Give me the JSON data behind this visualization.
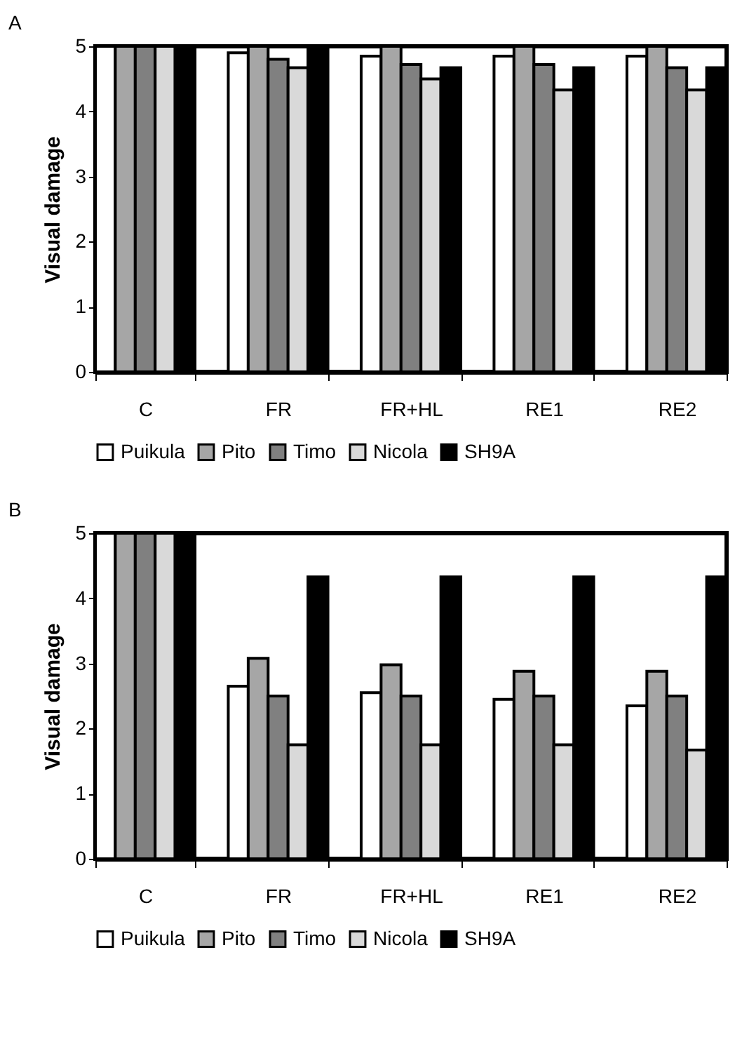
{
  "chart_data": [
    {
      "type": "bar",
      "title": "A",
      "ylabel": "Visual damage",
      "categories": [
        "C",
        "FR",
        "FR+HL",
        "RE1",
        "RE2"
      ],
      "ylim": [
        0,
        5
      ],
      "yticks": [
        0,
        1,
        2,
        3,
        4,
        5
      ],
      "legend": "bottom",
      "series": [
        {
          "name": "Puikula",
          "color": "#ffffff",
          "values": [
            5,
            4.9,
            4.85,
            4.85,
            4.85
          ]
        },
        {
          "name": "Pito",
          "color": "#a6a6a6",
          "values": [
            5,
            5,
            5,
            5,
            5
          ]
        },
        {
          "name": "Timo",
          "color": "#808080",
          "values": [
            5,
            4.8,
            4.72,
            4.72,
            4.67
          ]
        },
        {
          "name": "Nicola",
          "color": "#d9d9d9",
          "values": [
            5,
            4.67,
            4.5,
            4.33,
            4.33
          ]
        },
        {
          "name": "SH9A",
          "color": "#000000",
          "values": [
            5,
            5,
            4.67,
            4.67,
            4.67
          ]
        }
      ]
    },
    {
      "type": "bar",
      "title": "B",
      "ylabel": "Visual damage",
      "categories": [
        "C",
        "FR",
        "FR+HL",
        "RE1",
        "RE2"
      ],
      "ylim": [
        0,
        5
      ],
      "yticks": [
        0,
        1,
        2,
        3,
        4,
        5
      ],
      "legend": "bottom",
      "series": [
        {
          "name": "Puikula",
          "color": "#ffffff",
          "values": [
            5,
            2.65,
            2.55,
            2.45,
            2.35
          ]
        },
        {
          "name": "Pito",
          "color": "#a6a6a6",
          "values": [
            5,
            3.08,
            2.98,
            2.88,
            2.88
          ]
        },
        {
          "name": "Timo",
          "color": "#808080",
          "values": [
            5,
            2.5,
            2.5,
            2.5,
            2.5
          ]
        },
        {
          "name": "Nicola",
          "color": "#d9d9d9",
          "values": [
            5,
            1.75,
            1.75,
            1.75,
            1.67
          ]
        },
        {
          "name": "SH9A",
          "color": "#000000",
          "values": [
            5,
            4.33,
            4.33,
            4.33,
            4.33
          ]
        }
      ]
    }
  ]
}
